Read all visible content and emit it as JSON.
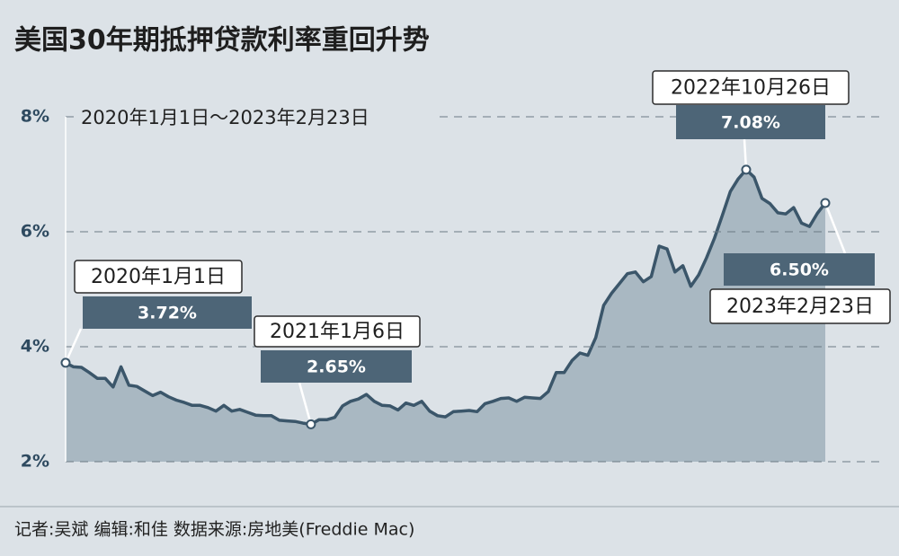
{
  "chart_data": {
    "type": "area",
    "title": "美国30年期抵押贷款利率重回升势",
    "subtitle": "2020年1月1日～2023年2月23日",
    "footer": "记者:吴斌  编辑:和佳   数据来源:房地美(Freddie Mac)",
    "categories": [
      "2020年1月1日",
      null,
      null,
      null,
      null,
      null,
      null,
      null,
      null,
      null,
      null,
      null,
      null,
      null,
      null,
      null,
      null,
      null,
      null,
      null,
      null,
      null,
      null,
      null,
      null,
      null,
      null,
      null,
      null,
      null,
      null,
      "2021年1月6日",
      null,
      null,
      null,
      null,
      null,
      null,
      null,
      null,
      null,
      null,
      null,
      null,
      null,
      null,
      null,
      null,
      null,
      null,
      null,
      null,
      null,
      null,
      null,
      null,
      null,
      null,
      null,
      null,
      null,
      null,
      null,
      null,
      null,
      null,
      null,
      null,
      null,
      null,
      null,
      null,
      null,
      null,
      null,
      null,
      null,
      null,
      null,
      null,
      null,
      null,
      null,
      null,
      null,
      null,
      "2022年10月26日",
      null,
      null,
      null,
      null,
      null,
      null,
      null,
      null,
      null,
      "2023年2月23日"
    ],
    "values": [
      3.72,
      3.65,
      3.64,
      3.55,
      3.45,
      3.45,
      3.3,
      3.65,
      3.33,
      3.31,
      3.23,
      3.15,
      3.21,
      3.13,
      3.07,
      3.03,
      2.98,
      2.98,
      2.94,
      2.88,
      2.98,
      2.88,
      2.91,
      2.86,
      2.81,
      2.8,
      2.8,
      2.72,
      2.71,
      2.7,
      2.67,
      2.65,
      2.73,
      2.73,
      2.77,
      2.97,
      3.05,
      3.09,
      3.17,
      3.05,
      2.98,
      2.97,
      2.9,
      3.02,
      2.98,
      3.05,
      2.88,
      2.8,
      2.78,
      2.87,
      2.88,
      2.89,
      2.87,
      3.01,
      3.05,
      3.1,
      3.11,
      3.05,
      3.12,
      3.11,
      3.1,
      3.22,
      3.55,
      3.55,
      3.76,
      3.89,
      3.85,
      4.16,
      4.72,
      4.93,
      5.1,
      5.27,
      5.3,
      5.13,
      5.22,
      5.75,
      5.7,
      5.3,
      5.41,
      5.05,
      5.25,
      5.55,
      5.89,
      6.29,
      6.7,
      6.92,
      7.08,
      6.95,
      6.58,
      6.49,
      6.33,
      6.31,
      6.42,
      6.15,
      6.09,
      6.32,
      6.5
    ],
    "value_labels": [
      "3.72%",
      null,
      null,
      null,
      null,
      null,
      null,
      null,
      null,
      null,
      null,
      null,
      null,
      null,
      null,
      null,
      null,
      null,
      null,
      null,
      null,
      null,
      null,
      null,
      null,
      null,
      null,
      null,
      null,
      null,
      null,
      "2.65%",
      null,
      null,
      null,
      null,
      null,
      null,
      null,
      null,
      null,
      null,
      null,
      null,
      null,
      null,
      null,
      null,
      null,
      null,
      null,
      null,
      null,
      null,
      null,
      null,
      null,
      null,
      null,
      null,
      null,
      null,
      null,
      null,
      null,
      null,
      null,
      null,
      null,
      null,
      null,
      null,
      null,
      null,
      null,
      null,
      null,
      null,
      null,
      null,
      null,
      null,
      null,
      null,
      null,
      null,
      "7.08%",
      null,
      null,
      null,
      null,
      null,
      null,
      null,
      null,
      null,
      "6.50%"
    ],
    "color": "#3b566a",
    "fill": "#a9b8c2",
    "ylim": [
      2,
      8
    ],
    "yticks": [
      {
        "value": 8,
        "label": "8%"
      },
      {
        "value": 6,
        "label": "6%"
      },
      {
        "value": 4,
        "label": "4%"
      },
      {
        "value": 2,
        "label": "2%"
      }
    ],
    "grid": true
  }
}
